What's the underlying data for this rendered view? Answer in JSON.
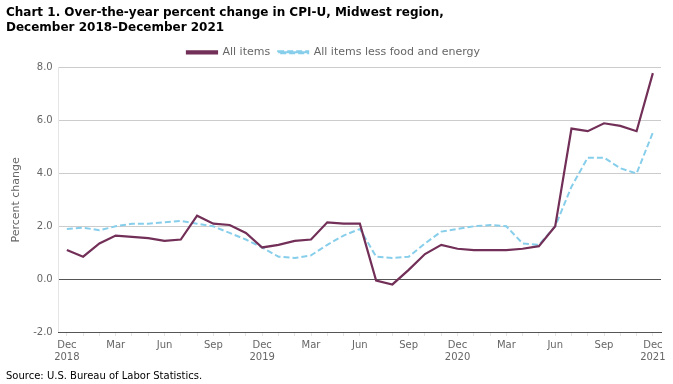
{
  "chart_data": {
    "type": "line",
    "title": [
      "Chart 1. Over-the-year percent change in CPI-U, Midwest region,",
      "December 2018–December 2021"
    ],
    "annotation": "Source: U.S. Bureau of Labor Statistics.",
    "y_label": "Percent change",
    "categories": [
      "Dec\n2018",
      null,
      null,
      "Mar",
      null,
      null,
      "Jun",
      null,
      null,
      "Sep",
      null,
      null,
      "Dec\n2019",
      null,
      null,
      "Mar",
      null,
      null,
      "Jun",
      null,
      null,
      "Sep",
      null,
      null,
      "Dec\n2020",
      null,
      null,
      "Mar",
      null,
      null,
      "Jun",
      null,
      null,
      "Sep",
      null,
      null,
      "Dec\n2021"
    ],
    "series": [
      {
        "name": "All items",
        "color": "#722F57",
        "line_style": "solid",
        "values": [
          1.1,
          0.85,
          1.35,
          1.65,
          1.6,
          1.55,
          1.45,
          1.5,
          2.4,
          2.1,
          2.05,
          1.75,
          1.2,
          1.3,
          1.45,
          1.5,
          2.15,
          2.1,
          2.1,
          -0.05,
          -0.2,
          0.35,
          0.95,
          1.3,
          1.15,
          1.1,
          1.1,
          1.1,
          1.15,
          1.25,
          2.0,
          5.7,
          5.6,
          5.9,
          5.8,
          5.6,
          7.8
        ]
      },
      {
        "name": "All items less food and energy",
        "color": "#87CEEB",
        "line_style": "dashed",
        "values": [
          1.9,
          1.95,
          1.85,
          2.0,
          2.1,
          2.1,
          2.15,
          2.2,
          2.1,
          2.0,
          1.75,
          1.5,
          1.2,
          0.85,
          0.8,
          0.9,
          1.3,
          1.65,
          1.9,
          0.85,
          0.8,
          0.85,
          1.35,
          1.8,
          1.9,
          2.0,
          2.05,
          2.0,
          1.35,
          1.3,
          2.0,
          3.5,
          4.6,
          4.6,
          4.2,
          4.0,
          5.55
        ]
      }
    ],
    "ylim": [
      -2.0,
      8.0
    ],
    "yticks": [
      {
        "value": -2.0,
        "label": "-2.0"
      },
      {
        "value": 0.0,
        "label": "0.0"
      },
      {
        "value": 2.0,
        "label": "2.0"
      },
      {
        "value": 4.0,
        "label": "4.0"
      },
      {
        "value": 6.0,
        "label": "6.0"
      },
      {
        "value": 8.0,
        "label": "8.0"
      }
    ],
    "grid": "y",
    "legend": "top"
  }
}
